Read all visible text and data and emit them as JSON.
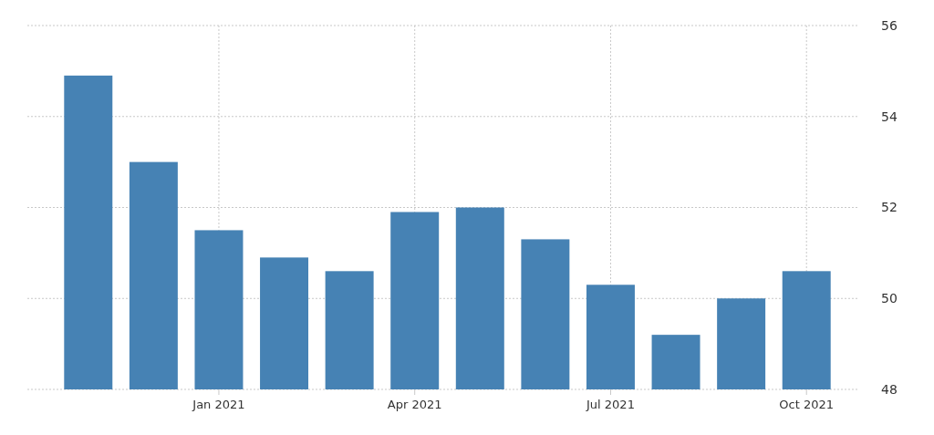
{
  "chart_data": {
    "type": "bar",
    "categories": [
      null,
      null,
      "Jan 2021",
      null,
      null,
      "Apr 2021",
      null,
      null,
      "Jul 2021",
      null,
      null,
      "Oct 2021"
    ],
    "values": [
      54.9,
      53.0,
      51.5,
      50.9,
      50.6,
      51.9,
      52.0,
      51.3,
      50.3,
      49.2,
      50.0,
      50.6
    ],
    "color": "#4682b4",
    "ylim": [
      48,
      56
    ],
    "yticks": [
      48,
      50,
      52,
      54,
      56
    ],
    "grid": true
  }
}
